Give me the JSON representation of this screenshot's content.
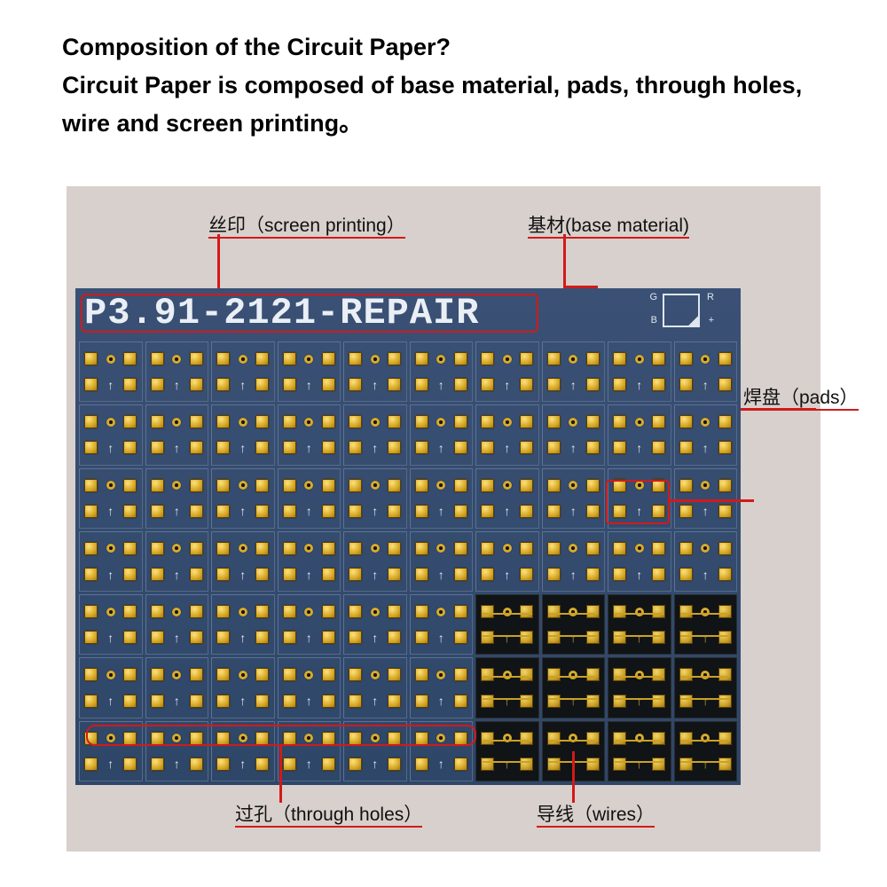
{
  "heading": {
    "line1": "Composition of the Circuit Paper?",
    "line2": "Circuit Paper is composed of base material, pads, through holes, wire and screen printing。"
  },
  "colors": {
    "pcb_blue_top": "#3a5175",
    "pcb_blue_bottom": "#2e4668",
    "pcb_dark": "#111416",
    "pad_gold": "#d4a725",
    "silk_white": "#eaeff5",
    "annotation_red": "#d11a1a",
    "canvas_bg": "#d8d0cc"
  },
  "silk": {
    "text": "P3.91-2121-REPAIR",
    "corner": {
      "G": "G",
      "R": "R",
      "B": "B",
      "plus": "+"
    }
  },
  "grid": {
    "cols": 10,
    "rows": 7,
    "dark_region": {
      "row_start": 4,
      "row_end": 6,
      "col_start": 6,
      "col_end": 9
    },
    "cell_elements": [
      "pad",
      "via",
      "pad",
      "pad",
      "arrow",
      "pad"
    ]
  },
  "annotations": {
    "screen_printing": {
      "label": "丝印（screen printing）",
      "target": "silk-text"
    },
    "base_material": {
      "label": "基材(base material)",
      "target": "pcb-base"
    },
    "pads": {
      "label": "焊盘（pads）",
      "target": "pad-cluster"
    },
    "through_holes": {
      "label": "过孔（through holes）",
      "target": "via-row"
    },
    "wires": {
      "label": "导线（wires）",
      "target": "dark-traces"
    }
  }
}
